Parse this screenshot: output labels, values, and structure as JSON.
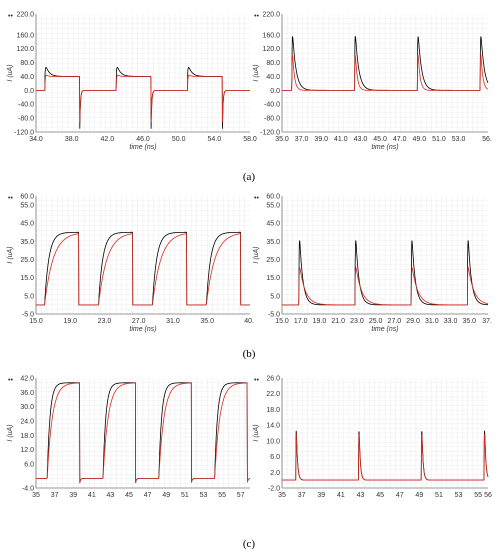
{
  "captions": [
    "(a)",
    "(b)",
    "(c)"
  ],
  "colors": {
    "black": "#000000",
    "red": "#d62d20",
    "grid": "#ececec",
    "axis": "#777777",
    "plotbg": "#ffffff"
  },
  "chart_data": [
    {
      "id": "a-left",
      "type": "line",
      "row": 0,
      "col": 0,
      "ylabel": "I (uA)",
      "xlabel": "time (ns)",
      "ylim": [
        -120,
        220
      ],
      "xlim": [
        34,
        58
      ],
      "y_ticks": [
        "220.0",
        "160.0",
        "120.0",
        "80.0",
        "40.0",
        "0.0",
        "-40.0",
        "-80.0",
        "-120.0"
      ],
      "y_tick_values": [
        220,
        160,
        120,
        80,
        40,
        0,
        -40,
        -80,
        -120
      ],
      "x_ticks": [
        "34.0",
        "38.0",
        "42.0",
        "46.0",
        "50.0",
        "54.0",
        "58.0"
      ],
      "x_tick_values": [
        34,
        38,
        42,
        46,
        50,
        54,
        58
      ],
      "grid": true,
      "series": [
        {
          "color": "black",
          "kind": "plateau",
          "period": 8,
          "t0": 35,
          "width": 3.9,
          "base": 0,
          "high": 40,
          "peak": 210,
          "neg": -120,
          "decay": 0.4,
          "spike_over": 40
        },
        {
          "color": "red",
          "kind": "plateau",
          "period": 8,
          "t0": 35,
          "width": 3.9,
          "base": 0,
          "high": 40,
          "peak": 160,
          "neg": -100,
          "decay": 0.2,
          "spike_over": 12
        }
      ]
    },
    {
      "id": "a-right",
      "type": "line",
      "row": 0,
      "col": 1,
      "ylabel": "I (uA)",
      "xlabel": "time (ns)",
      "ylim": [
        -120,
        220
      ],
      "xlim": [
        35,
        56
      ],
      "y_ticks": [
        "220.0",
        "160.0",
        "120.0",
        "80.0",
        "40.0",
        "0.0",
        "-40.0",
        "-80.0",
        "-120.0"
      ],
      "y_tick_values": [
        220,
        160,
        120,
        80,
        40,
        0,
        -40,
        -80,
        -120
      ],
      "x_ticks": [
        "35.0",
        "37.0",
        "39.0",
        "41.0",
        "43.0",
        "45.0",
        "47.0",
        "49.0",
        "51.0",
        "53.0",
        "56."
      ],
      "x_tick_values": [
        35,
        37,
        39,
        41,
        43,
        45,
        47,
        49,
        51,
        53,
        55.9
      ],
      "grid": true,
      "series": [
        {
          "color": "black",
          "kind": "pulse",
          "period": 6.4,
          "t0": 36,
          "base": 0,
          "peak": 210,
          "neg": -120,
          "decay": 0.35,
          "spike_over": 45
        },
        {
          "color": "red",
          "kind": "pulse",
          "period": 6.4,
          "t0": 36,
          "base": 0,
          "peak": 160,
          "neg": -100,
          "decay": 0.2,
          "spike_over": 30
        }
      ]
    },
    {
      "id": "b-left",
      "type": "line",
      "row": 1,
      "col": 0,
      "ylabel": "I (uA)",
      "xlabel": "time (ns)",
      "ylim": [
        -5,
        60
      ],
      "xlim": [
        15,
        40
      ],
      "y_ticks": [
        "60.0",
        "55.0",
        "45.0",
        "35.0",
        "25.0",
        "15.0",
        "5.0",
        "-5.0"
      ],
      "y_tick_values": [
        60,
        55,
        45,
        35,
        25,
        15,
        5,
        -5
      ],
      "x_ticks": [
        "15.0",
        "19.0",
        "23.0",
        "27.0",
        "31.0",
        "35.0",
        "40."
      ],
      "x_tick_values": [
        15,
        19,
        23,
        27,
        31,
        35,
        39.9
      ],
      "grid": true,
      "series": [
        {
          "color": "black",
          "kind": "plateau",
          "period": 6.3,
          "t0": 16,
          "width": 4.0,
          "base": 0,
          "high": 40,
          "peak": 52,
          "neg": 0,
          "decay": 0.3,
          "rise": 0.5,
          "spike_over": 0
        },
        {
          "color": "red",
          "kind": "plateau",
          "period": 6.3,
          "t0": 16,
          "width": 4.0,
          "base": 0,
          "high": 40,
          "peak": 55,
          "neg": 0,
          "decay": 0.5,
          "rise": 1.0,
          "spike_over": 0
        }
      ]
    },
    {
      "id": "b-right",
      "type": "line",
      "row": 1,
      "col": 1,
      "ylabel": "I (uA)",
      "xlabel": "time (ns)",
      "ylim": [
        -5,
        60
      ],
      "xlim": [
        15,
        37
      ],
      "y_ticks": [
        "60.0",
        "55.0",
        "45.0",
        "35.0",
        "25.0",
        "15.0",
        "5.0",
        "-5.0"
      ],
      "y_tick_values": [
        60,
        55,
        45,
        35,
        25,
        15,
        5,
        -5
      ],
      "x_ticks": [
        "15.0",
        "17.0",
        "19.0",
        "21.0",
        "23.0",
        "25.0",
        "27.0",
        "29.0",
        "31.0",
        "33.0",
        "35.0",
        "37."
      ],
      "x_tick_values": [
        15,
        17,
        19,
        21,
        23,
        25,
        27,
        29,
        31,
        33,
        35,
        36.9
      ],
      "grid": true,
      "series": [
        {
          "color": "black",
          "kind": "pulse",
          "period": 6.0,
          "t0": 16.8,
          "base": 0,
          "peak": 48,
          "neg": 0,
          "decay": 0.35,
          "spike_over": 0
        },
        {
          "color": "red",
          "kind": "pulse",
          "period": 6.0,
          "t0": 16.8,
          "base": 0,
          "peak": 25,
          "neg": 0,
          "decay": 0.6,
          "spike_over": 0
        }
      ]
    },
    {
      "id": "c-left",
      "type": "line",
      "row": 2,
      "col": 0,
      "ylabel": "I (uA)",
      "xlabel": "",
      "ylim": [
        -4,
        42
      ],
      "xlim": [
        35,
        58
      ],
      "y_ticks": [
        "42.0",
        "36.0",
        "30.0",
        "24.0",
        "18.0",
        "12.0",
        "6.0",
        "-4.0"
      ],
      "y_tick_values": [
        42,
        36,
        30,
        24,
        18,
        12,
        6,
        -4
      ],
      "x_ticks": [
        "35",
        "37",
        "39",
        "41",
        "43",
        "45",
        "47",
        "49",
        "51",
        "53",
        "55",
        "57"
      ],
      "x_tick_values": [
        35,
        37,
        39,
        41,
        43,
        45,
        47,
        49,
        51,
        53,
        55,
        57
      ],
      "grid": true,
      "series": [
        {
          "color": "black",
          "kind": "plateau",
          "period": 6.0,
          "t0": 36.2,
          "width": 3.5,
          "base": 0,
          "high": 40,
          "peak": 40,
          "neg": -2,
          "decay": 0.3,
          "rise": 0.3,
          "spike_over": 0
        },
        {
          "color": "red",
          "kind": "plateau",
          "period": 6.0,
          "t0": 36.2,
          "width": 3.5,
          "base": 0,
          "high": 40,
          "peak": 40,
          "neg": -2,
          "decay": 0.3,
          "rise": 0.55,
          "spike_over": 0
        }
      ]
    },
    {
      "id": "c-right",
      "type": "line",
      "row": 2,
      "col": 1,
      "ylabel": "I (uA)",
      "xlabel": "",
      "ylim": [
        -2,
        26
      ],
      "xlim": [
        35,
        56
      ],
      "y_ticks": [
        "26.0",
        "22.0",
        "18.0",
        "14.0",
        "10.0",
        "6.0",
        "2.0",
        "-2.0"
      ],
      "y_tick_values": [
        26,
        22,
        18,
        14,
        10,
        6,
        2,
        -2
      ],
      "x_ticks": [
        "35",
        "37",
        "39",
        "41",
        "43",
        "45",
        "47",
        "49",
        "51",
        "53",
        "55",
        "56"
      ],
      "x_tick_values": [
        35,
        37,
        39,
        41,
        43,
        45,
        47,
        49,
        51,
        53,
        55,
        56
      ],
      "grid": true,
      "series": [
        {
          "color": "black",
          "kind": "pulse",
          "period": 6.4,
          "t0": 36.4,
          "base": 0,
          "peak": 23.5,
          "neg": -1,
          "decay": 0.12,
          "spike_over": 0
        },
        {
          "color": "red",
          "kind": "pulse",
          "period": 6.4,
          "t0": 36.4,
          "base": 0,
          "peak": 22,
          "neg": -1,
          "decay": 0.12,
          "spike_over": 0
        }
      ]
    }
  ]
}
